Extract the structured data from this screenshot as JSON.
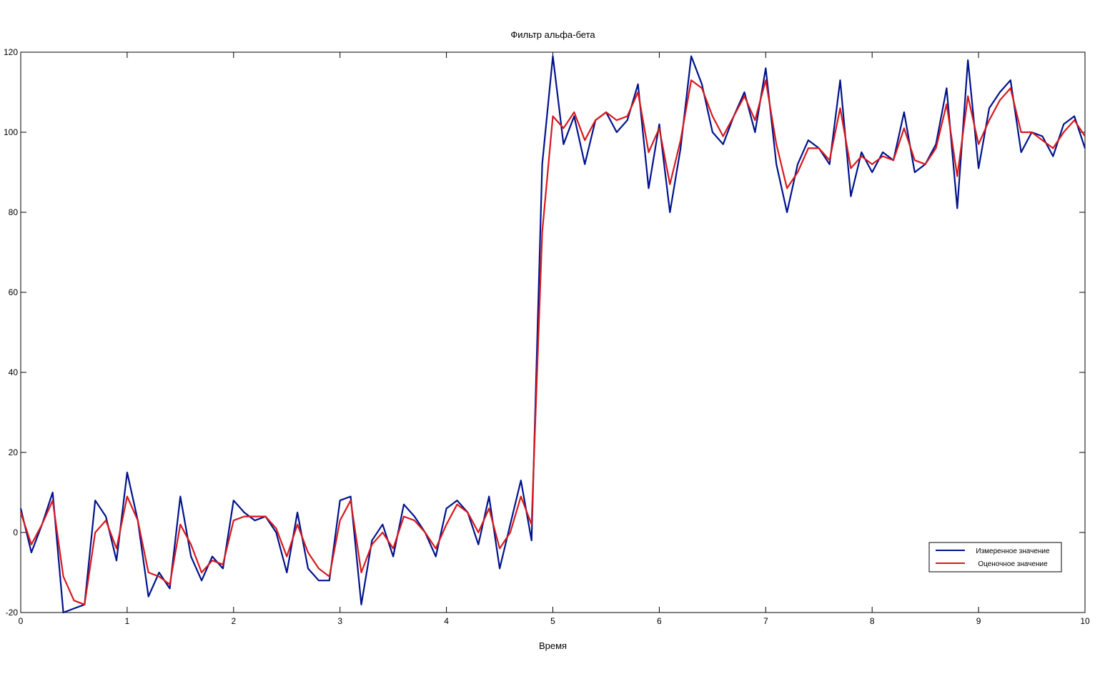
{
  "chart_data": {
    "type": "line",
    "title": "Фильтр альфа-бета",
    "xlabel": "Время",
    "ylabel": "",
    "xlim": [
      0,
      10
    ],
    "ylim": [
      -20,
      120
    ],
    "xticks": [
      "0",
      "1",
      "2",
      "3",
      "4",
      "5",
      "6",
      "7",
      "8",
      "9",
      "10"
    ],
    "yticks": [
      "-20",
      "0",
      "20",
      "40",
      "60",
      "80",
      "100",
      "120"
    ],
    "grid": false,
    "legend_position": "bottom-right",
    "x": [
      0,
      0.1,
      0.2,
      0.3,
      0.4,
      0.5,
      0.6,
      0.7,
      0.8,
      0.9,
      1,
      1.1,
      1.2,
      1.3,
      1.4,
      1.5,
      1.6,
      1.7,
      1.8,
      1.9,
      2,
      2.1,
      2.2,
      2.3,
      2.4,
      2.5,
      2.6,
      2.7,
      2.8,
      2.9,
      3,
      3.1,
      3.2,
      3.3,
      3.4,
      3.5,
      3.6,
      3.7,
      3.8,
      3.9,
      4,
      4.1,
      4.2,
      4.3,
      4.4,
      4.5,
      4.6,
      4.7,
      4.8,
      4.9,
      5,
      5.1,
      5.2,
      5.3,
      5.4,
      5.5,
      5.6,
      5.7,
      5.8,
      5.9,
      6,
      6.1,
      6.2,
      6.3,
      6.4,
      6.5,
      6.6,
      6.7,
      6.8,
      6.9,
      7,
      7.1,
      7.2,
      7.3,
      7.4,
      7.5,
      7.6,
      7.7,
      7.8,
      7.9,
      8,
      8.1,
      8.2,
      8.3,
      8.4,
      8.5,
      8.6,
      8.7,
      8.8,
      8.9,
      9,
      9.1,
      9.2,
      9.3,
      9.4,
      9.5,
      9.6,
      9.7,
      9.8,
      9.9,
      10
    ],
    "series": [
      {
        "name": "Измеренное значение",
        "color": "#00128c",
        "values": [
          6,
          -5,
          2,
          10,
          -20,
          -19,
          -18,
          8,
          4,
          -7,
          15,
          3,
          -16,
          -10,
          -14,
          9,
          -6,
          -12,
          -6,
          -9,
          8,
          5,
          3,
          4,
          0,
          -10,
          5,
          -9,
          -12,
          -12,
          8,
          9,
          -18,
          -2,
          2,
          -6,
          7,
          4,
          0,
          -6,
          6,
          8,
          5,
          -3,
          9,
          -9,
          2,
          13,
          -2,
          92,
          119,
          97,
          104,
          92,
          103,
          105,
          100,
          103,
          112,
          86,
          102,
          80,
          96,
          119,
          112,
          100,
          97,
          104,
          110,
          100,
          116,
          92,
          80,
          92,
          98,
          96,
          92,
          113,
          84,
          95,
          90,
          95,
          93,
          105,
          90,
          92,
          97,
          111,
          81,
          118,
          91,
          106,
          110,
          113,
          95,
          100,
          99,
          94,
          102,
          104,
          96
        ]
      },
      {
        "name": "Оценочное значение",
        "color": "#d7191c",
        "values": [
          5,
          -3,
          2,
          8,
          -11,
          -17,
          -18,
          0,
          3,
          -4,
          9,
          3,
          -10,
          -11,
          -13,
          2,
          -3,
          -10,
          -7,
          -8,
          3,
          4,
          4,
          4,
          1,
          -6,
          2,
          -5,
          -9,
          -11,
          3,
          8,
          -10,
          -3,
          0,
          -4,
          4,
          3,
          0,
          -4,
          2,
          7,
          5,
          0,
          6,
          -4,
          0,
          9,
          2,
          75,
          104,
          101,
          105,
          98,
          103,
          105,
          103,
          104,
          110,
          95,
          101,
          87,
          98,
          113,
          111,
          104,
          99,
          104,
          109,
          103,
          113,
          97,
          86,
          90,
          96,
          96,
          93,
          106,
          91,
          94,
          92,
          94,
          93,
          101,
          93,
          92,
          96,
          107,
          89,
          109,
          97,
          103,
          108,
          111,
          100,
          100,
          98,
          96,
          100,
          103,
          99
        ]
      }
    ]
  }
}
